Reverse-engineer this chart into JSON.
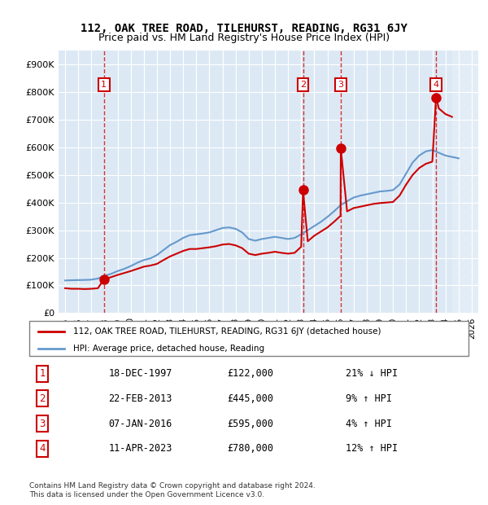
{
  "title": "112, OAK TREE ROAD, TILEHURST, READING, RG31 6JY",
  "subtitle": "Price paid vs. HM Land Registry's House Price Index (HPI)",
  "legend_line1": "112, OAK TREE ROAD, TILEHURST, READING, RG31 6JY (detached house)",
  "legend_line2": "HPI: Average price, detached house, Reading",
  "footer1": "Contains HM Land Registry data © Crown copyright and database right 2024.",
  "footer2": "This data is licensed under the Open Government Licence v3.0.",
  "ylabel": "",
  "sales": [
    {
      "num": 1,
      "date": "18-DEC-1997",
      "price": 122000,
      "pct": "21%",
      "dir": "↓",
      "label": "1"
    },
    {
      "num": 2,
      "date": "22-FEB-2013",
      "price": 445000,
      "pct": "9%",
      "dir": "↑",
      "label": "2"
    },
    {
      "num": 3,
      "date": "07-JAN-2016",
      "price": 595000,
      "pct": "4%",
      "dir": "↑",
      "label": "3"
    },
    {
      "num": 4,
      "date": "11-APR-2023",
      "price": 780000,
      "pct": "12%",
      "dir": "↑",
      "label": "4"
    }
  ],
  "sale_years": [
    1997.96,
    2013.14,
    2016.02,
    2023.28
  ],
  "hpi_years": [
    1995,
    1995.5,
    1996,
    1996.5,
    1997,
    1997.5,
    1998,
    1998.5,
    1999,
    1999.5,
    2000,
    2000.5,
    2001,
    2001.5,
    2002,
    2002.5,
    2003,
    2003.5,
    2004,
    2004.5,
    2005,
    2005.5,
    2006,
    2006.5,
    2007,
    2007.5,
    2008,
    2008.5,
    2009,
    2009.5,
    2010,
    2010.5,
    2011,
    2011.5,
    2012,
    2012.5,
    2013,
    2013.5,
    2014,
    2014.5,
    2015,
    2015.5,
    2016,
    2016.5,
    2017,
    2017.5,
    2018,
    2018.5,
    2019,
    2019.5,
    2020,
    2020.5,
    2021,
    2021.5,
    2022,
    2022.5,
    2023,
    2023.5,
    2024,
    2024.5,
    2025
  ],
  "hpi_values": [
    118000,
    119000,
    119500,
    120000,
    121000,
    125000,
    135000,
    142000,
    152000,
    160000,
    170000,
    182000,
    192000,
    198000,
    210000,
    228000,
    246000,
    258000,
    272000,
    282000,
    285000,
    288000,
    292000,
    300000,
    308000,
    310000,
    305000,
    292000,
    268000,
    262000,
    268000,
    272000,
    276000,
    272000,
    268000,
    272000,
    285000,
    300000,
    315000,
    330000,
    348000,
    368000,
    390000,
    405000,
    418000,
    425000,
    430000,
    435000,
    440000,
    442000,
    445000,
    465000,
    505000,
    545000,
    570000,
    585000,
    590000,
    580000,
    570000,
    565000,
    560000
  ],
  "price_years": [
    1995,
    1995.5,
    1996,
    1996.5,
    1997,
    1997.5,
    1997.96,
    1998.5,
    1999,
    1999.5,
    2000,
    2000.5,
    2001,
    2001.5,
    2002,
    2002.5,
    2003,
    2003.5,
    2004,
    2004.5,
    2005,
    2005.5,
    2006,
    2006.5,
    2007,
    2007.5,
    2008,
    2008.5,
    2009,
    2009.5,
    2010,
    2010.5,
    2011,
    2011.5,
    2012,
    2012.5,
    2013,
    2013.14,
    2013.5,
    2014,
    2014.5,
    2015,
    2015.5,
    2016,
    2016.02,
    2016.5,
    2017,
    2017.5,
    2018,
    2018.5,
    2019,
    2019.5,
    2020,
    2020.5,
    2021,
    2021.5,
    2022,
    2022.5,
    2023,
    2023.28,
    2023.5,
    2024,
    2024.5
  ],
  "price_values": [
    90000,
    88000,
    88000,
    87000,
    88000,
    90000,
    122000,
    130000,
    138000,
    145000,
    152000,
    160000,
    168000,
    172000,
    178000,
    192000,
    205000,
    215000,
    225000,
    232000,
    232000,
    235000,
    238000,
    242000,
    248000,
    250000,
    245000,
    235000,
    215000,
    210000,
    215000,
    218000,
    222000,
    218000,
    215000,
    218000,
    240000,
    445000,
    260000,
    280000,
    295000,
    310000,
    330000,
    352000,
    595000,
    368000,
    380000,
    385000,
    390000,
    395000,
    398000,
    400000,
    402000,
    425000,
    465000,
    500000,
    525000,
    540000,
    548000,
    780000,
    740000,
    720000,
    710000
  ],
  "chart_bg": "#dce9f5",
  "hatch_start": 2024.5,
  "xlim": [
    1994.5,
    2026.5
  ],
  "ylim": [
    0,
    950000
  ],
  "yticks": [
    0,
    100000,
    200000,
    300000,
    400000,
    500000,
    600000,
    700000,
    800000,
    900000
  ],
  "ytick_labels": [
    "£0",
    "£100K",
    "£200K",
    "£300K",
    "£400K",
    "£500K",
    "£600K",
    "£700K",
    "£800K",
    "£900K"
  ],
  "xtick_years": [
    1995,
    1996,
    1997,
    1998,
    1999,
    2000,
    2001,
    2002,
    2003,
    2004,
    2005,
    2006,
    2007,
    2008,
    2009,
    2010,
    2011,
    2012,
    2013,
    2014,
    2015,
    2016,
    2017,
    2018,
    2019,
    2020,
    2021,
    2022,
    2023,
    2024,
    2025,
    2026
  ],
  "red_color": "#cc0000",
  "blue_color": "#6699cc",
  "marker_box_color": "#cc0000",
  "dashed_vline_color": "#cc0000"
}
